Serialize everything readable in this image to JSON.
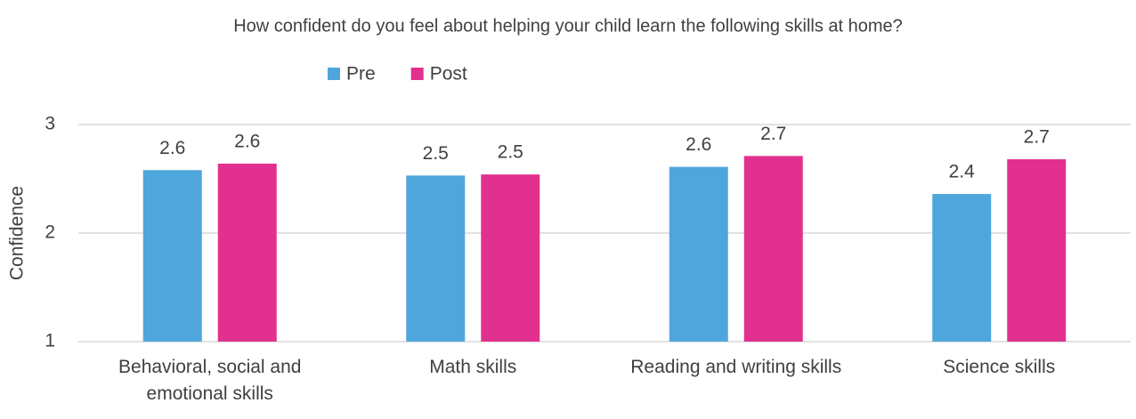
{
  "chart_data": {
    "type": "bar",
    "title": "How confident do you feel about helping your child learn the following skills at home?",
    "y_label": "Confidence",
    "categories": [
      "Behavioral, social and emotional skills",
      "Math skills",
      "Reading and writing skills",
      "Science skills"
    ],
    "series": [
      {
        "name": "Pre",
        "color": "#4ea6dc",
        "values": [
          2.58,
          2.53,
          2.61,
          2.36
        ],
        "value_labels": [
          "2.6",
          "2.5",
          "2.6",
          "2.4"
        ]
      },
      {
        "name": "Post",
        "color": "#e2308f",
        "values": [
          2.64,
          2.54,
          2.71,
          2.68
        ],
        "value_labels": [
          "2.6",
          "2.5",
          "2.7",
          "2.7"
        ]
      }
    ],
    "ylim": [
      1,
      3
    ],
    "yticks": [
      1,
      2,
      3
    ],
    "grid": true,
    "legend": "top"
  }
}
